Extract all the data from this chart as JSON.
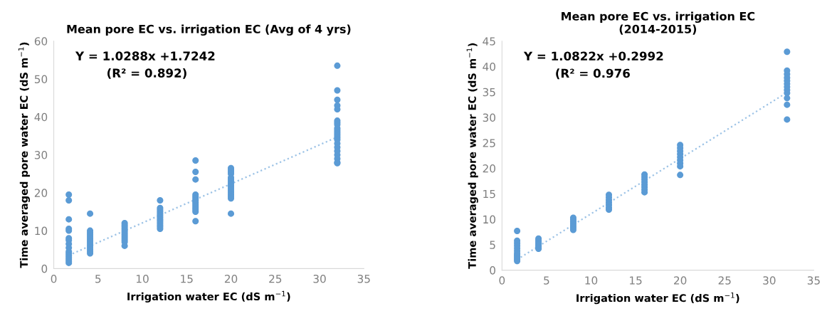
{
  "chart_data": [
    {
      "type": "scatter",
      "title": "Mean pore EC vs. irrigation EC (Avg of 4 yrs)",
      "xlabel": "Irrigation water EC (dS m$^{−1}$)",
      "ylabel": "Time averaged pore water EC (dS m$^{−1}$)",
      "xlim": [
        0,
        35
      ],
      "xticks": [
        0,
        5,
        10,
        15,
        20,
        25,
        30,
        35
      ],
      "ylim": [
        0,
        60
      ],
      "yticks": [
        0,
        10,
        20,
        30,
        40,
        50,
        60
      ],
      "grid": false,
      "annotations": [
        "Y = 1.0288x +1.7242",
        "(R² = 0.892)"
      ],
      "series": [
        {
          "marker": "circle",
          "color": "#5b9bd5",
          "x": [
            1.7,
            1.7,
            1.7,
            1.7,
            1.7,
            1.7,
            1.7,
            1.7,
            1.7,
            1.7,
            1.7,
            1.7,
            1.7,
            1.7,
            1.7,
            1.7,
            4.1,
            4.1,
            4.1,
            4.1,
            4.1,
            4.1,
            4.1,
            4.1,
            4.1,
            4.1,
            4.1,
            4.1,
            4.1,
            4.1,
            8,
            8,
            8,
            8,
            8,
            8,
            8,
            8,
            8,
            8,
            8,
            8,
            12,
            12,
            12,
            12,
            12,
            12,
            12,
            12,
            12,
            12,
            12,
            12,
            12,
            16,
            16,
            16,
            16,
            16,
            16,
            16,
            16,
            16,
            16,
            16,
            16,
            16,
            16,
            20,
            20,
            20,
            20,
            20,
            20,
            20,
            20,
            20,
            20,
            20,
            20,
            20,
            20,
            20,
            20,
            20,
            32,
            32,
            32,
            32,
            32,
            32,
            32,
            32,
            32,
            32,
            32,
            32,
            32,
            32,
            32,
            32,
            32,
            32,
            32,
            32,
            32,
            32
          ],
          "values": [
            19.5,
            18,
            13,
            10.5,
            10,
            8,
            7.5,
            6.5,
            5.5,
            4.5,
            4,
            3.5,
            3,
            2.5,
            2,
            1.5,
            14.5,
            10,
            9.5,
            9,
            8.5,
            8,
            7.5,
            7,
            6.5,
            6,
            5.5,
            5,
            4.5,
            4,
            12,
            11.5,
            11,
            10.5,
            10,
            9.5,
            9,
            8.5,
            8,
            7.5,
            7,
            6,
            18,
            16,
            15.5,
            15,
            14.5,
            14,
            13.5,
            13,
            12.5,
            12,
            11.5,
            11,
            10.5,
            28.5,
            25.5,
            23.5,
            19.5,
            19,
            18.5,
            18,
            17.5,
            17,
            16.5,
            16,
            15.5,
            15,
            12.5,
            26.5,
            26,
            25.5,
            25,
            24,
            23.5,
            23,
            22.5,
            22,
            21.5,
            21,
            20.5,
            20,
            19.5,
            19,
            18.5,
            14.5,
            53.5,
            47,
            44.5,
            43,
            42,
            39,
            38.5,
            38,
            37,
            36.5,
            36,
            35.5,
            35,
            34.5,
            34,
            33,
            32,
            31,
            30,
            29,
            28,
            27.8
          ]
        },
        {
          "type": "line",
          "color": "#9dc3e6",
          "line_style": "dotted",
          "x": [
            1.7,
            32
          ],
          "values": [
            3.5,
            34.7
          ]
        }
      ]
    },
    {
      "type": "scatter",
      "title": "Mean pore EC vs. irrigation EC\n(2014-2015)",
      "xlabel": "Irrigation water EC (dS m$^{−1}$)",
      "ylabel": "Time averaged pore water EC (dS m$^{−1}$)",
      "xlim": [
        0,
        35
      ],
      "xticks": [
        0,
        5,
        10,
        15,
        20,
        25,
        30,
        35
      ],
      "ylim": [
        0,
        45
      ],
      "yticks": [
        0,
        5,
        10,
        15,
        20,
        25,
        30,
        35,
        40,
        45
      ],
      "grid": false,
      "annotations": [
        "Y = 1.0822x +0.2992",
        "(R² = 0.976"
      ],
      "series": [
        {
          "marker": "circle",
          "color": "#5b9bd5",
          "x": [
            1.7,
            1.7,
            1.7,
            1.7,
            1.7,
            1.7,
            1.7,
            1.7,
            1.7,
            1.7,
            1.7,
            1.7,
            4.1,
            4.1,
            4.1,
            4.1,
            4.1,
            4.1,
            4.1,
            4.1,
            8,
            8,
            8,
            8,
            8,
            8,
            8,
            12,
            12,
            12,
            12,
            12,
            12,
            12,
            16,
            16,
            16,
            16,
            16,
            16,
            16,
            16,
            20,
            20,
            20,
            20,
            20,
            20,
            20,
            20,
            20,
            32,
            32,
            32,
            32,
            32,
            32,
            32,
            32,
            32,
            32,
            32,
            32
          ],
          "values": [
            7.7,
            5.8,
            5.3,
            4.8,
            4.3,
            3.8,
            3.3,
            3,
            2.7,
            2.4,
            2.1,
            1.8,
            6.2,
            5.9,
            5.6,
            5.3,
            5,
            4.7,
            4.4,
            4.2,
            10.3,
            9.9,
            9.5,
            9.1,
            8.7,
            8.3,
            7.9,
            14.8,
            14.3,
            13.8,
            13.3,
            12.8,
            12.3,
            11.9,
            18.8,
            18.3,
            17.8,
            17.3,
            16.8,
            16.3,
            15.8,
            15.3,
            24.6,
            24,
            23.4,
            22.8,
            22.2,
            21.6,
            21,
            20.4,
            18.7,
            42.9,
            39.2,
            38.5,
            37.8,
            37.2,
            36.6,
            36,
            35.4,
            34.8,
            33.8,
            32.5,
            29.6
          ]
        },
        {
          "type": "line",
          "color": "#9dc3e6",
          "line_style": "dotted",
          "x": [
            1.7,
            32
          ],
          "values": [
            2.1,
            34.9
          ]
        }
      ]
    }
  ]
}
